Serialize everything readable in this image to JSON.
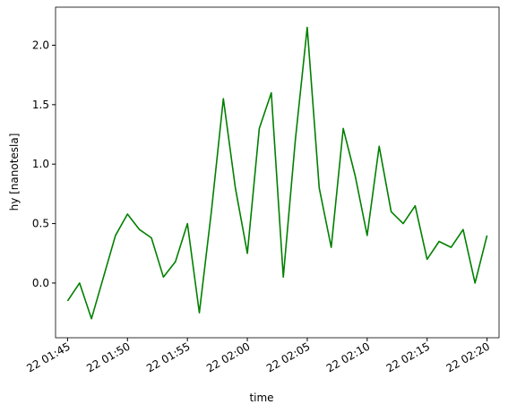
{
  "chart_data": {
    "type": "line",
    "xlabel": "time",
    "ylabel": "hy [nanotesla]",
    "x": [
      "22 01:45",
      "22 01:46",
      "22 01:47",
      "22 01:48",
      "22 01:49",
      "22 01:50",
      "22 01:51",
      "22 01:52",
      "22 01:53",
      "22 01:54",
      "22 01:55",
      "22 01:56",
      "22 01:57",
      "22 01:58",
      "22 01:59",
      "22 02:00",
      "22 02:01",
      "22 02:02",
      "22 02:03",
      "22 02:04",
      "22 02:05",
      "22 02:06",
      "22 02:07",
      "22 02:08",
      "22 02:09",
      "22 02:10",
      "22 02:11",
      "22 02:12",
      "22 02:13",
      "22 02:14",
      "22 02:15",
      "22 02:16",
      "22 02:17",
      "22 02:18",
      "22 02:19",
      "22 02:20"
    ],
    "series": [
      {
        "name": "hy",
        "color": "#008000",
        "values": [
          -0.15,
          0.0,
          -0.3,
          0.05,
          0.4,
          0.58,
          0.45,
          0.38,
          0.05,
          0.18,
          0.5,
          -0.25,
          0.6,
          1.55,
          0.8,
          0.25,
          1.3,
          1.6,
          0.05,
          1.2,
          2.15,
          0.8,
          0.3,
          1.3,
          0.9,
          0.4,
          1.15,
          0.6,
          0.5,
          0.65,
          0.2,
          0.35,
          0.3,
          0.45,
          0.0,
          0.4
        ]
      }
    ],
    "xlim": [
      "22 01:44",
      "22 02:21"
    ],
    "xticks": [
      "22 01:45",
      "22 01:50",
      "22 01:55",
      "22 02:00",
      "22 02:05",
      "22 02:10",
      "22 02:15",
      "22 02:20"
    ],
    "ylim": [
      -0.46,
      2.32
    ],
    "yticks": [
      {
        "value": 0,
        "label": "0.0"
      },
      {
        "value": 0.5,
        "label": "0.5"
      },
      {
        "value": 1,
        "label": "1.0"
      },
      {
        "value": 1.5,
        "label": "1.5"
      },
      {
        "value": 2,
        "label": "2.0"
      }
    ],
    "grid": false
  }
}
